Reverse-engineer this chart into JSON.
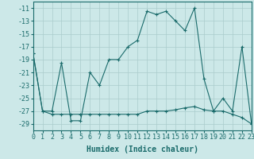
{
  "xlabel": "Humidex (Indice chaleur)",
  "background_color": "#cce8e8",
  "grid_color": "#aacccc",
  "line_color": "#1a6b6b",
  "x_values_line1": [
    0,
    1,
    2,
    3,
    4,
    5,
    6,
    7,
    8,
    9,
    10,
    11,
    12,
    13,
    14,
    15,
    16,
    17,
    18,
    19,
    20,
    21,
    22,
    23
  ],
  "y_values_line1": [
    -18,
    -27,
    -27,
    -19.5,
    -28.5,
    -28.5,
    -21,
    -23,
    -19,
    -19,
    -17,
    -16,
    -11.5,
    -12,
    -11.5,
    -13,
    -14.5,
    -11,
    -22,
    -27,
    -25,
    -27,
    -17,
    -29
  ],
  "x_values_line2": [
    0,
    1,
    2,
    3,
    4,
    5,
    6,
    7,
    8,
    9,
    10,
    11,
    12,
    13,
    14,
    15,
    16,
    17,
    18,
    19,
    20,
    21,
    22,
    23
  ],
  "y_values_line2": [
    -18,
    -27,
    -27.5,
    -27.5,
    -27.5,
    -27.5,
    -27.5,
    -27.5,
    -27.5,
    -27.5,
    -27.5,
    -27.5,
    -27,
    -27,
    -27,
    -26.8,
    -26.5,
    -26.3,
    -26.8,
    -27,
    -27,
    -27.5,
    -28,
    -29
  ],
  "yticks": [
    -11,
    -13,
    -15,
    -17,
    -19,
    -21,
    -23,
    -25,
    -27,
    -29
  ],
  "xticks": [
    0,
    1,
    2,
    3,
    4,
    5,
    6,
    7,
    8,
    9,
    10,
    11,
    12,
    13,
    14,
    15,
    16,
    17,
    18,
    19,
    20,
    21,
    22,
    23
  ],
  "ylim": [
    -30.0,
    -10.0
  ],
  "xlim": [
    0,
    23
  ],
  "xlabel_fontsize": 7,
  "tick_fontsize": 6,
  "linewidth": 0.8,
  "markersize": 3
}
